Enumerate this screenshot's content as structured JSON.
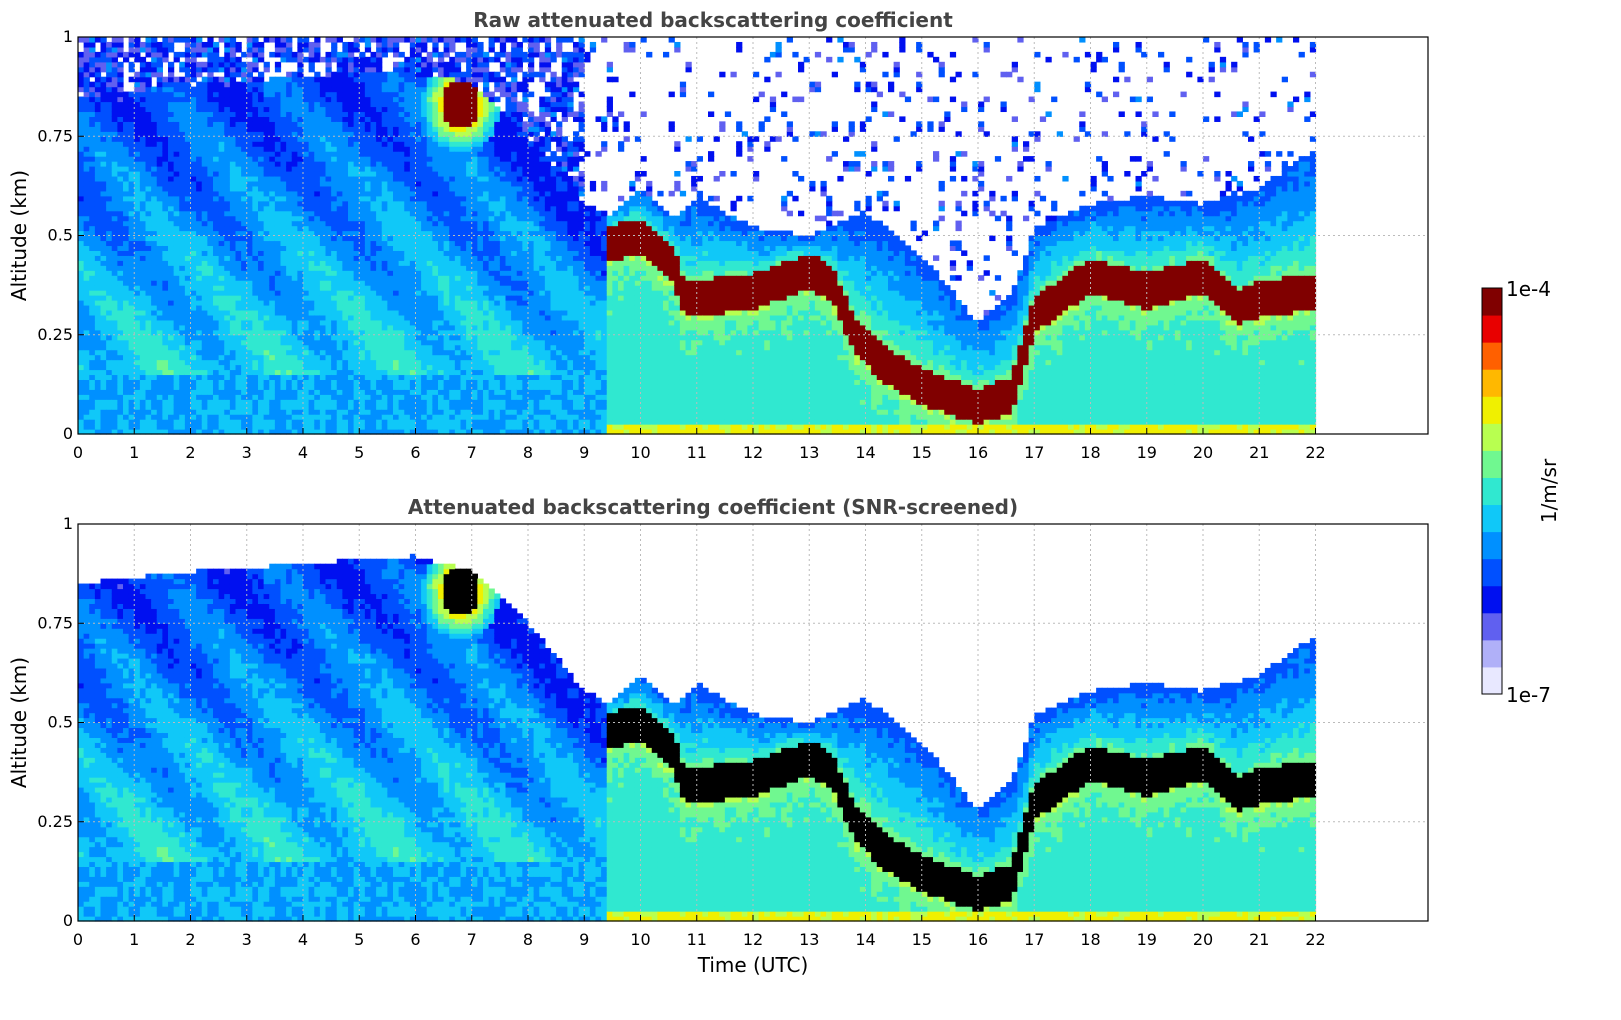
{
  "colors": {
    "colormap": [
      "#e8e8ff",
      "#b0b0f8",
      "#6060f0",
      "#0010f0",
      "#0050ff",
      "#0090ff",
      "#10c8f8",
      "#30e8d0",
      "#70f890",
      "#b8ff50",
      "#f0f000",
      "#ffb800",
      "#ff6000",
      "#e80000",
      "#800000"
    ],
    "screened": "#000000",
    "grid": "#bbbbbb",
    "title": "#444444"
  },
  "chart_data": [
    {
      "type": "heatmap",
      "title": "Raw attenuated backscattering coefficient",
      "xlabel": "",
      "ylabel": "Altitude (km)",
      "xlim": [
        0,
        24
      ],
      "ylim": [
        0,
        1
      ],
      "x_ticks": [
        "0",
        "1",
        "2",
        "3",
        "4",
        "5",
        "6",
        "7",
        "8",
        "9",
        "10",
        "11",
        "12",
        "13",
        "14",
        "15",
        "16",
        "17",
        "18",
        "19",
        "20",
        "21",
        "22"
      ],
      "y_ticks": [
        "0",
        "0.25",
        "0.5",
        "0.75",
        "1"
      ],
      "grid": true,
      "data_time_range": [
        0,
        22
      ],
      "snr_screened": false
    },
    {
      "type": "heatmap",
      "title": "Attenuated backscattering coefficient (SNR-screened)",
      "xlabel": "Time (UTC)",
      "ylabel": "Altitude (km)",
      "xlim": [
        0,
        24
      ],
      "ylim": [
        0,
        1
      ],
      "x_ticks": [
        "0",
        "1",
        "2",
        "3",
        "4",
        "5",
        "6",
        "7",
        "8",
        "9",
        "10",
        "11",
        "12",
        "13",
        "14",
        "15",
        "16",
        "17",
        "18",
        "19",
        "20",
        "21",
        "22"
      ],
      "y_ticks": [
        "0",
        "0.25",
        "0.5",
        "0.75",
        "1"
      ],
      "grid": true,
      "data_time_range": [
        0,
        22
      ],
      "snr_screened": true
    }
  ],
  "colorbar": {
    "label": "1/m/sr",
    "min_label": "1e-7",
    "max_label": "1e-4",
    "scale": "log",
    "range": [
      1e-07,
      0.0001
    ]
  },
  "features": {
    "cloud_base_km": [
      [
        9.4,
        0.48
      ],
      [
        10,
        0.5
      ],
      [
        10.6,
        0.42
      ],
      [
        10.8,
        0.34
      ],
      [
        12,
        0.36
      ],
      [
        13,
        0.41
      ],
      [
        13.4,
        0.38
      ],
      [
        13.8,
        0.25
      ],
      [
        14.3,
        0.18
      ],
      [
        15,
        0.12
      ],
      [
        16,
        0.07
      ],
      [
        16.6,
        0.1
      ],
      [
        17,
        0.3
      ],
      [
        18,
        0.4
      ],
      [
        19,
        0.36
      ],
      [
        20,
        0.4
      ],
      [
        20.6,
        0.32
      ],
      [
        21,
        0.34
      ],
      [
        22,
        0.36
      ]
    ],
    "boundary_layer_top_km": [
      [
        0,
        0.85
      ],
      [
        2,
        0.88
      ],
      [
        4,
        0.9
      ],
      [
        6,
        0.92
      ],
      [
        7,
        0.88
      ],
      [
        8,
        0.75
      ],
      [
        9,
        0.58
      ],
      [
        9.4,
        0.55
      ],
      [
        10,
        0.62
      ],
      [
        10.6,
        0.55
      ],
      [
        11,
        0.6
      ],
      [
        12,
        0.52
      ],
      [
        13,
        0.5
      ],
      [
        14,
        0.56
      ],
      [
        15,
        0.45
      ],
      [
        16,
        0.28
      ],
      [
        16.6,
        0.35
      ],
      [
        17,
        0.52
      ],
      [
        18,
        0.58
      ],
      [
        19,
        0.6
      ],
      [
        20,
        0.58
      ],
      [
        21,
        0.62
      ],
      [
        22,
        0.72
      ]
    ],
    "aerosol_plume": {
      "time": 6.8,
      "altitude_km": 0.83
    }
  }
}
